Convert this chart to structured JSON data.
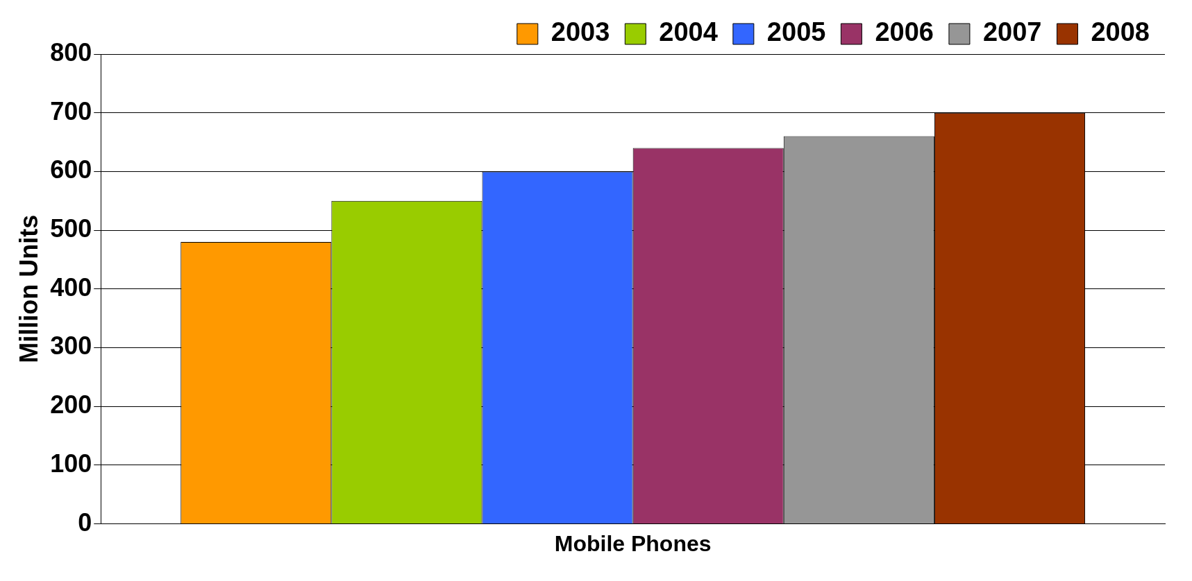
{
  "chart_data": {
    "type": "bar",
    "ylabel": "Million Units",
    "categories": [
      "Mobile Phones"
    ],
    "series": [
      {
        "name": "2003",
        "color": "#ff9900",
        "values": [
          480
        ]
      },
      {
        "name": "2004",
        "color": "#99cc00",
        "values": [
          550
        ]
      },
      {
        "name": "2005",
        "color": "#3366ff",
        "values": [
          600
        ]
      },
      {
        "name": "2006",
        "color": "#993366",
        "values": [
          640
        ]
      },
      {
        "name": "2007",
        "color": "#969696",
        "values": [
          660
        ]
      },
      {
        "name": "2008",
        "color": "#993300",
        "values": [
          700
        ]
      }
    ],
    "ylim": [
      0,
      800
    ],
    "yticks": [
      0,
      100,
      200,
      300,
      400,
      500,
      600,
      700,
      800
    ],
    "grid": "y",
    "legend": "top right"
  }
}
